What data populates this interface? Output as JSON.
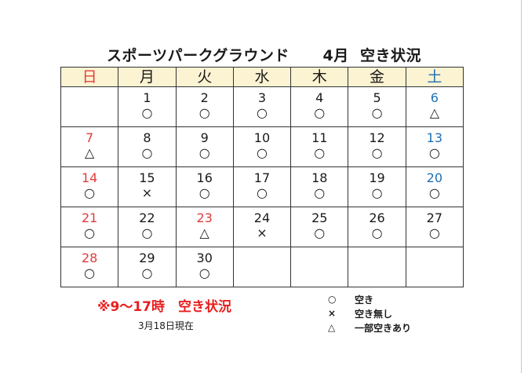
{
  "title": {
    "name": "スポーツパークグラウンド",
    "month": "4月",
    "status": "空き状況"
  },
  "colors": {
    "sunday": "#e03c3c",
    "saturday": "#1e6fb4",
    "header_bg": "#fcf3d2",
    "note_red": "#e81e1e"
  },
  "weekdays": [
    {
      "label": "日",
      "color": "#e03c3c"
    },
    {
      "label": "月",
      "color": "#1a1a1a"
    },
    {
      "label": "火",
      "color": "#1a1a1a"
    },
    {
      "label": "水",
      "color": "#1a1a1a"
    },
    {
      "label": "木",
      "color": "#1a1a1a"
    },
    {
      "label": "金",
      "color": "#1a1a1a"
    },
    {
      "label": "土",
      "color": "#1e6fb4"
    }
  ],
  "weeks": [
    [
      {
        "day": "",
        "mark": "",
        "color": ""
      },
      {
        "day": "1",
        "mark": "○",
        "color": "#1a1a1a"
      },
      {
        "day": "2",
        "mark": "○",
        "color": "#1a1a1a"
      },
      {
        "day": "3",
        "mark": "○",
        "color": "#1a1a1a"
      },
      {
        "day": "4",
        "mark": "○",
        "color": "#1a1a1a"
      },
      {
        "day": "5",
        "mark": "○",
        "color": "#1a1a1a"
      },
      {
        "day": "6",
        "mark": "△",
        "color": "#1e6fb4"
      }
    ],
    [
      {
        "day": "7",
        "mark": "△",
        "color": "#e03c3c"
      },
      {
        "day": "8",
        "mark": "○",
        "color": "#1a1a1a"
      },
      {
        "day": "9",
        "mark": "○",
        "color": "#1a1a1a"
      },
      {
        "day": "10",
        "mark": "○",
        "color": "#1a1a1a"
      },
      {
        "day": "11",
        "mark": "○",
        "color": "#1a1a1a"
      },
      {
        "day": "12",
        "mark": "○",
        "color": "#1a1a1a"
      },
      {
        "day": "13",
        "mark": "○",
        "color": "#1e6fb4"
      }
    ],
    [
      {
        "day": "14",
        "mark": "○",
        "color": "#e03c3c"
      },
      {
        "day": "15",
        "mark": "×",
        "color": "#1a1a1a"
      },
      {
        "day": "16",
        "mark": "○",
        "color": "#1a1a1a"
      },
      {
        "day": "17",
        "mark": "○",
        "color": "#1a1a1a"
      },
      {
        "day": "18",
        "mark": "○",
        "color": "#1a1a1a"
      },
      {
        "day": "19",
        "mark": "○",
        "color": "#1a1a1a"
      },
      {
        "day": "20",
        "mark": "○",
        "color": "#1e6fb4"
      }
    ],
    [
      {
        "day": "21",
        "mark": "○",
        "color": "#e03c3c"
      },
      {
        "day": "22",
        "mark": "○",
        "color": "#1a1a1a"
      },
      {
        "day": "23",
        "mark": "△",
        "color": "#e03c3c"
      },
      {
        "day": "24",
        "mark": "×",
        "color": "#1a1a1a"
      },
      {
        "day": "25",
        "mark": "○",
        "color": "#1a1a1a"
      },
      {
        "day": "26",
        "mark": "○",
        "color": "#1a1a1a"
      },
      {
        "day": "27",
        "mark": "○",
        "color": "#1a1a1a"
      }
    ],
    [
      {
        "day": "28",
        "mark": "○",
        "color": "#e03c3c"
      },
      {
        "day": "29",
        "mark": "○",
        "color": "#1a1a1a"
      },
      {
        "day": "30",
        "mark": "○",
        "color": "#1a1a1a"
      },
      {
        "day": "",
        "mark": "",
        "color": ""
      },
      {
        "day": "",
        "mark": "",
        "color": ""
      },
      {
        "day": "",
        "mark": "",
        "color": ""
      },
      {
        "day": "",
        "mark": "",
        "color": ""
      }
    ]
  ],
  "note": "※9～17時　空き状況",
  "updated": "3月18日現在",
  "legend": [
    {
      "symbol": "○",
      "label": "空き"
    },
    {
      "symbol": "×",
      "label": "空き無し"
    },
    {
      "symbol": "△",
      "label": "一部空きあり"
    }
  ]
}
